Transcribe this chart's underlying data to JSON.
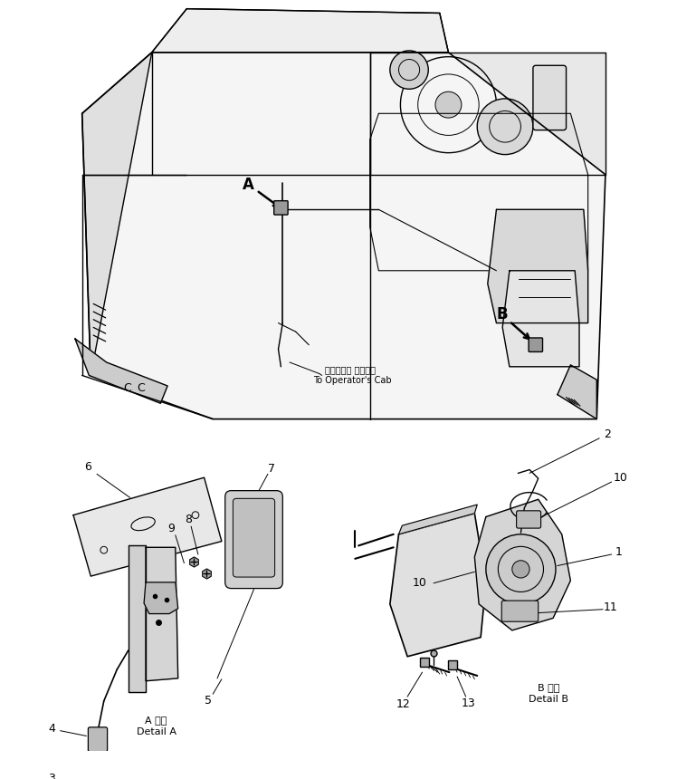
{
  "bg_color": "#ffffff",
  "line_color": "#000000",
  "fig_width": 7.48,
  "fig_height": 8.6,
  "dpi": 100,
  "label_A": "A",
  "label_B": "B",
  "detail_A_label_jp": "オペレータ キャブへ",
  "detail_A_label_en": "To Operator's Cab",
  "detail_A_title_jp": "A 詳細",
  "detail_A_title_en": "Detail A",
  "detail_B_title_jp": "B 詳細",
  "detail_B_title_en": "Detail B",
  "font_size_labels": 9,
  "font_size_detail": 8
}
